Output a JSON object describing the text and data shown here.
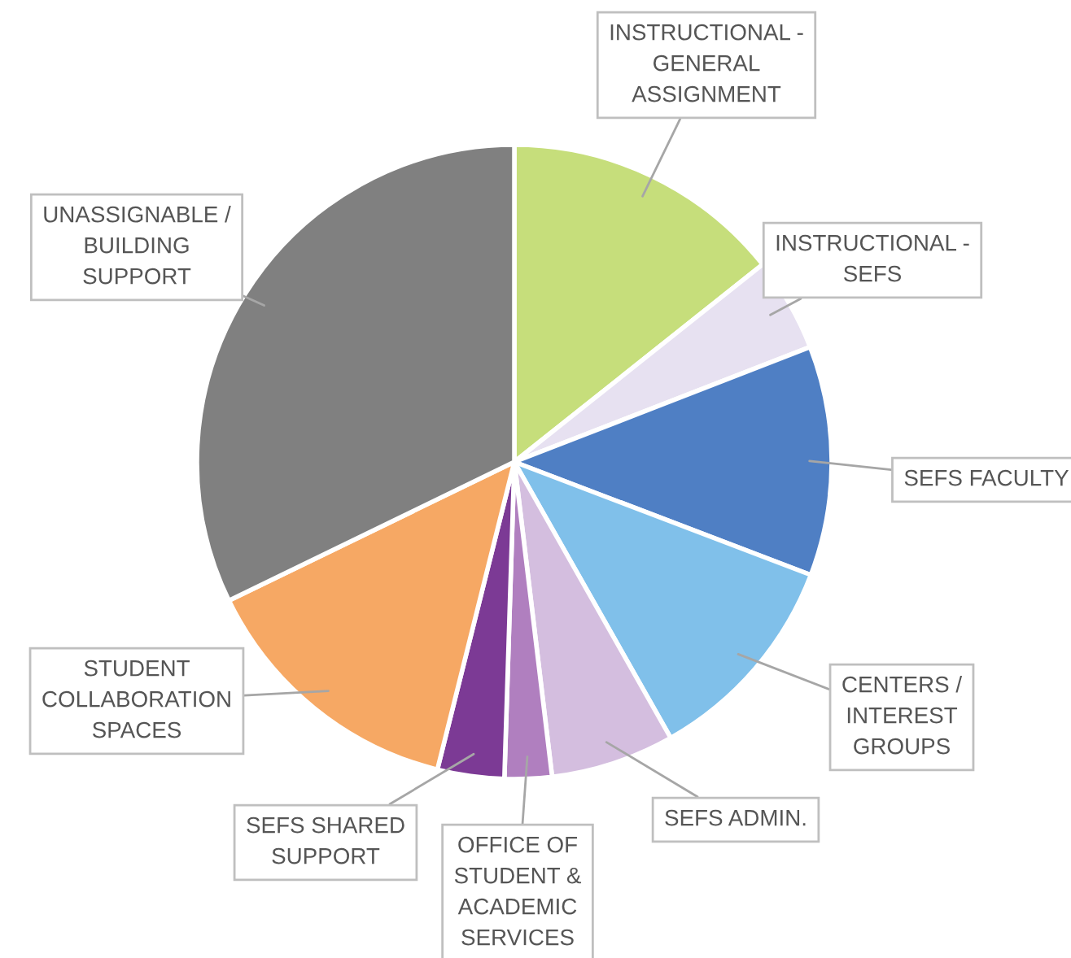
{
  "chart_data": {
    "type": "pie",
    "categories": [
      "INSTRUCTIONAL -\nGENERAL\nASSIGNMENT",
      "INSTRUCTIONAL -\nSEFS",
      "SEFS FACULTY",
      "CENTERS /\nINTEREST\nGROUPS",
      "SEFS ADMIN.",
      "OFFICE OF\nSTUDENT &\nACADEMIC\nSERVICES",
      "SEFS SHARED\nSUPPORT",
      "STUDENT\nCOLLABORATION\nSPACES",
      "UNASSIGNABLE /\nBUILDING\nSUPPORT"
    ],
    "values": [
      14.3,
      4.8,
      11.7,
      11.0,
      6.3,
      2.4,
      3.4,
      13.9,
      32.2
    ],
    "colors": [
      "#c6de7b",
      "#e7e1f1",
      "#4f7fc4",
      "#80c0ea",
      "#d4bedf",
      "#b07fbf",
      "#7c3a95",
      "#f6a864",
      "#808080"
    ],
    "legend": false
  }
}
